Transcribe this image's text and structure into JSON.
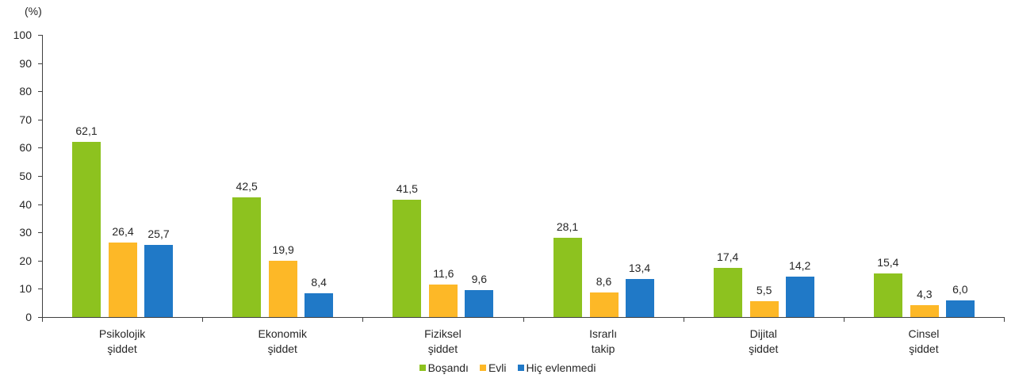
{
  "chart_data": {
    "type": "bar",
    "title": "",
    "ylabel": "(%)",
    "xlabel": "",
    "ylim": [
      0,
      100
    ],
    "yticks": [
      0,
      10,
      20,
      30,
      40,
      50,
      60,
      70,
      80,
      90,
      100
    ],
    "grid": false,
    "legend_position": "bottom",
    "categories": [
      "Psikolojik şiddet",
      "Ekonomik şiddet",
      "Fiziksel şiddet",
      "Israrlı takip",
      "Dijital şiddet",
      "Cinsel şiddet"
    ],
    "category_lines": [
      [
        "Psikolojik",
        "şiddet"
      ],
      [
        "Ekonomik",
        "şiddet"
      ],
      [
        "Fiziksel",
        "şiddet"
      ],
      [
        "Israrlı",
        "takip"
      ],
      [
        "Dijital",
        "şiddet"
      ],
      [
        "Cinsel",
        "şiddet"
      ]
    ],
    "series": [
      {
        "name": "Boşandı",
        "color": "#8DC21F",
        "values": [
          62.1,
          42.5,
          41.5,
          28.1,
          17.4,
          15.4
        ],
        "labels": [
          "62,1",
          "42,5",
          "41,5",
          "28,1",
          "17,4",
          "15,4"
        ]
      },
      {
        "name": "Evli",
        "color": "#FDB827",
        "values": [
          26.4,
          19.9,
          11.6,
          8.6,
          5.5,
          4.3
        ],
        "labels": [
          "26,4",
          "19,9",
          "11,6",
          "8,6",
          "5,5",
          "4,3"
        ]
      },
      {
        "name": "Hiç evlenmedi",
        "color": "#2079C7",
        "values": [
          25.7,
          8.4,
          9.6,
          13.4,
          14.2,
          6.0
        ],
        "labels": [
          "25,7",
          "8,4",
          "9,6",
          "13,4",
          "14,2",
          "6,0"
        ]
      }
    ]
  }
}
